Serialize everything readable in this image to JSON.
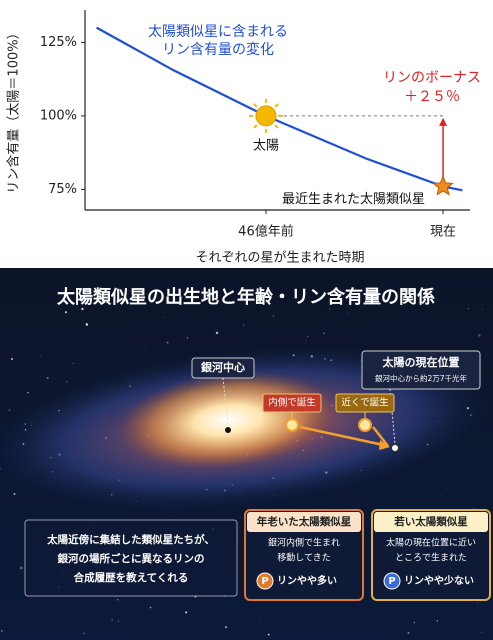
{
  "chart_data": {
    "type": "line",
    "title_lines": [
      "太陽類似星に含まれる",
      "リン含有量の変化"
    ],
    "x_label": "それぞれの星が生まれた時期",
    "y_label": "リン含有量（太陽＝100%）",
    "xlim": [
      93,
      -7
    ],
    "ylim": [
      68,
      136
    ],
    "xticks": [
      {
        "value": 46,
        "label": "46億年前"
      },
      {
        "value": 0,
        "label": "現在"
      }
    ],
    "yticks": [
      {
        "value": 75,
        "label": "75%"
      },
      {
        "value": 100,
        "label": "100%"
      },
      {
        "value": 125,
        "label": "125%"
      }
    ],
    "series": [
      {
        "color": "#1f4fd8",
        "x": [
          90,
          70,
          46,
          20,
          0,
          -5
        ],
        "values": [
          130,
          115.5,
          100,
          85.5,
          76,
          74.7
        ]
      }
    ],
    "markers": [
      {
        "name": "太陽",
        "x": 46,
        "value": 100,
        "color": "#f5b800"
      },
      {
        "name": "最近生まれた太陽類似星",
        "x": 0,
        "value": 76,
        "color": "#f08a1c"
      }
    ],
    "bonus_lines": [
      "リンのボーナス",
      "＋２５％"
    ]
  },
  "infographic": {
    "title": "太陽類似星の出生地と年齢・リン含有量の関係",
    "center_label": "銀河中心",
    "sun_label": "太陽の現在位置",
    "sun_sub": "銀河中心から約2万7千光年",
    "inner_label": "内側で誕生",
    "near_label": "近くで誕生",
    "note_lines": [
      "太陽近傍に集結した類似星たちが、",
      "銀河の場所ごとに異なるリンの",
      "合成履歴を教えてくれる"
    ],
    "cards": [
      {
        "title": "年老いた太陽類似星",
        "body": [
          "銀河内側で生まれ",
          "移動してきた"
        ],
        "icon": "P",
        "result": "リンやや多い"
      },
      {
        "title": "若い太陽類似星",
        "body": [
          "太陽の現在位置に近い",
          "ところで生まれた"
        ],
        "icon": "P",
        "result": "リンやや少ない"
      }
    ]
  }
}
